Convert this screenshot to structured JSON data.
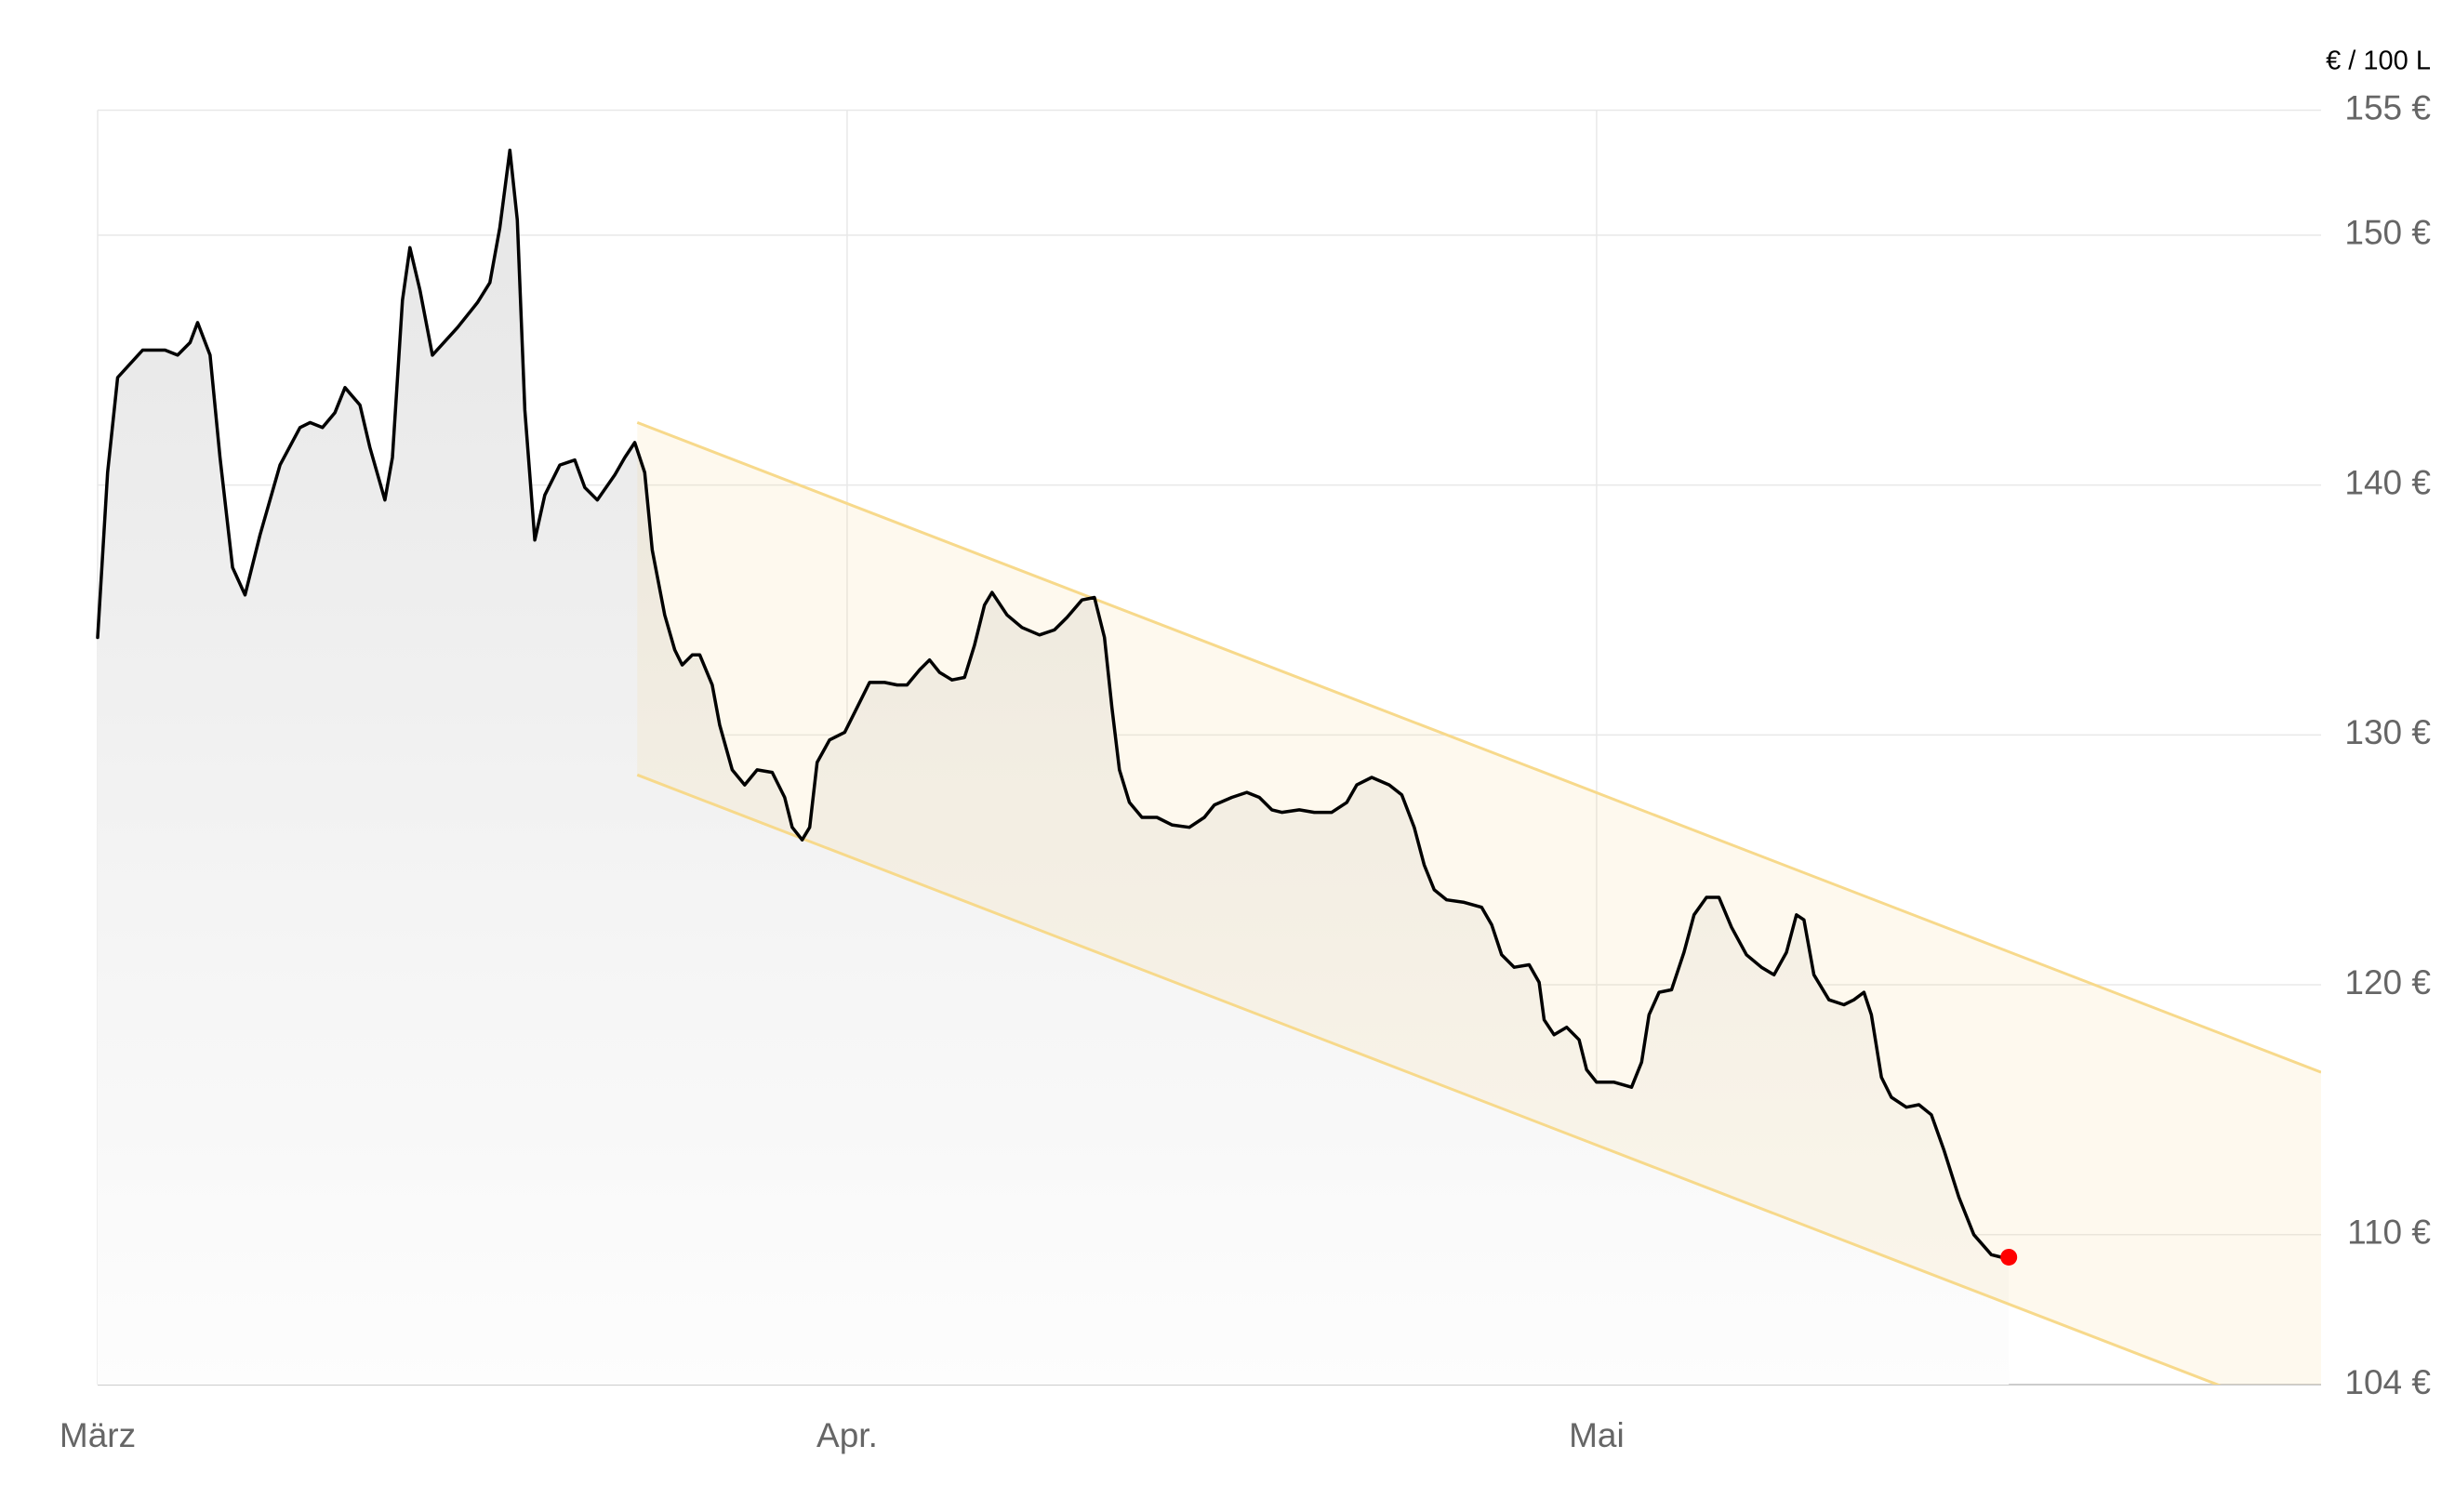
{
  "chart_data": {
    "type": "line",
    "unit_label": "€ / 100 L",
    "x": [
      0,
      0.4,
      0.8,
      1.8,
      2.7,
      3.2,
      3.7,
      4.0,
      4.5,
      4.9,
      5.4,
      5.9,
      6.5,
      7.3,
      8.1,
      8.5,
      9.0,
      9.5,
      9.9,
      10.5,
      10.9,
      11.5,
      11.8,
      12.2,
      12.5,
      12.9,
      13.4,
      14.4,
      15.2,
      15.7,
      16.1,
      16.5,
      16.8,
      17.1,
      17.5,
      17.9,
      18.5,
      19.1,
      19.5,
      20.0,
      20.7,
      21.1,
      21.5,
      21.9,
      22.2,
      22.7,
      23.1,
      23.4,
      23.8,
      24.1,
      24.6,
      24.9,
      25.4,
      25.9,
      26.4,
      27.0,
      27.5,
      27.8,
      28.2,
      28.5,
      28.8,
      29.3,
      29.9,
      30.4,
      30.9,
      31.5,
      32.0,
      32.4,
      32.9,
      33.3,
      33.7,
      34.2,
      34.7,
      35.1,
      35.5,
      35.8,
      36.4,
      37.0,
      37.7,
      38.3,
      38.8,
      39.4,
      39.9,
      40.3,
      40.6,
      40.9,
      41.3,
      41.8,
      42.4,
      43.0,
      43.7,
      44.3,
      44.7,
      45.4,
      46.0,
      46.5,
      47.0,
      47.4,
      48.1,
      48.7,
      49.4,
      50.0,
      50.4,
      51.0,
      51.7,
      52.2,
      52.7,
      53.1,
      53.5,
      54.0,
      54.7,
      55.4,
      55.8,
      56.2,
      56.7,
      57.3,
      57.7,
      57.9,
      58.3,
      58.8,
      59.3,
      59.6,
      60.0,
      60.7,
      61.4,
      61.8,
      62.1,
      62.5,
      63.0,
      63.5,
      63.9,
      64.4,
      64.9,
      65.4,
      66.0,
      66.6,
      67.1,
      67.6,
      68.0,
      68.3,
      68.7,
      69.3,
      69.9,
      70.3,
      70.7,
      71.0,
      71.4,
      71.8,
      72.4,
      72.9,
      73.4,
      73.9,
      74.5,
      75.1,
      75.8,
      76.2,
      76.5
    ],
    "series": [
      {
        "color": "#000000",
        "values": [
          133.9,
          140.5,
          144.3,
          145.4,
          145.4,
          145.2,
          145.7,
          146.5,
          145.2,
          141.1,
          136.7,
          135.6,
          138.0,
          140.8,
          142.3,
          142.5,
          142.3,
          142.9,
          143.9,
          143.2,
          141.5,
          139.4,
          141.1,
          147.4,
          149.5,
          147.8,
          145.2,
          146.3,
          147.3,
          148.1,
          150.3,
          153.4,
          150.6,
          143.0,
          137.8,
          139.6,
          140.8,
          141.0,
          139.9,
          139.4,
          140.4,
          141.1,
          141.7,
          140.5,
          137.4,
          134.8,
          133.4,
          132.8,
          133.2,
          133.2,
          132.0,
          130.4,
          128.6,
          128.0,
          128.6,
          128.5,
          127.5,
          126.3,
          125.8,
          126.3,
          128.9,
          129.8,
          130.1,
          131.1,
          132.1,
          132.1,
          132.0,
          132.0,
          132.6,
          133.0,
          132.5,
          132.2,
          132.3,
          133.6,
          135.2,
          135.7,
          134.8,
          134.3,
          134.0,
          134.2,
          134.7,
          135.4,
          135.5,
          133.9,
          131.1,
          128.6,
          127.3,
          126.7,
          126.7,
          126.4,
          126.3,
          126.7,
          127.2,
          127.5,
          127.7,
          127.5,
          127.0,
          126.9,
          127.0,
          126.9,
          126.9,
          127.3,
          128.0,
          128.3,
          128.0,
          127.6,
          126.3,
          124.8,
          123.8,
          123.4,
          123.3,
          123.1,
          122.4,
          121.2,
          120.7,
          120.8,
          120.1,
          118.6,
          118.0,
          118.3,
          117.8,
          116.6,
          116.1,
          116.1,
          115.9,
          116.9,
          118.8,
          119.7,
          119.8,
          121.3,
          122.8,
          123.5,
          123.5,
          122.3,
          121.2,
          120.7,
          120.4,
          121.3,
          122.8,
          122.6,
          120.4,
          119.4,
          119.2,
          119.4,
          119.7,
          118.8,
          116.3,
          115.5,
          115.1,
          115.2,
          114.8,
          113.4,
          111.5,
          110.0,
          109.2,
          109.1,
          109.1
        ]
      }
    ],
    "last_point_color": "#ff0000",
    "channel": {
      "x": [
        21.6,
        89
      ],
      "upper": [
        142.5,
        116.5
      ],
      "lower": [
        128.4,
        102.4
      ],
      "color": "#f7d98b"
    },
    "xlim": [
      0,
      89
    ],
    "ylim": [
      104,
      155
    ],
    "xticks": [
      {
        "value": 0,
        "label": "März"
      },
      {
        "value": 30,
        "label": "Apr."
      },
      {
        "value": 60,
        "label": "Mai"
      }
    ],
    "yticks": [
      {
        "value": 104,
        "label": "104 €"
      },
      {
        "value": 110,
        "label": "110 €"
      },
      {
        "value": 120,
        "label": "120 €"
      },
      {
        "value": 130,
        "label": "130 €"
      },
      {
        "value": 140,
        "label": "140 €"
      },
      {
        "value": 150,
        "label": "150 €"
      },
      {
        "value": 155,
        "label": "155 €"
      }
    ],
    "grid": true
  }
}
